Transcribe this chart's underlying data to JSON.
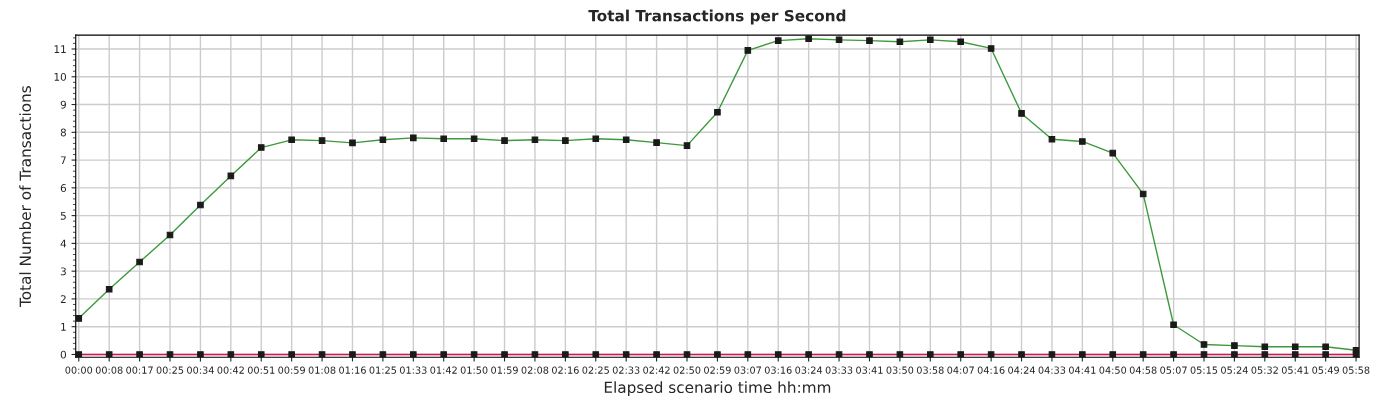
{
  "chart_data": {
    "type": "line",
    "title": "Total Transactions per Second",
    "xlabel": "Elapsed scenario time hh:mm",
    "ylabel": "Total Number of Transactions",
    "categories": [
      "00:00",
      "00:08",
      "00:17",
      "00:25",
      "00:34",
      "00:42",
      "00:51",
      "00:59",
      "01:08",
      "01:16",
      "01:25",
      "01:33",
      "01:42",
      "01:50",
      "01:59",
      "02:08",
      "02:16",
      "02:25",
      "02:33",
      "02:42",
      "02:50",
      "02:59",
      "03:07",
      "03:16",
      "03:24",
      "03:33",
      "03:41",
      "03:50",
      "03:58",
      "04:07",
      "04:16",
      "04:24",
      "04:33",
      "04:41",
      "04:50",
      "04:58",
      "05:07",
      "05:15",
      "05:24",
      "05:32",
      "05:41",
      "05:49",
      "05:58"
    ],
    "series": [
      {
        "color": "#3c9a3c",
        "values": [
          1.3,
          2.35,
          3.33,
          4.3,
          5.38,
          6.43,
          7.45,
          7.73,
          7.7,
          7.62,
          7.73,
          7.8,
          7.77,
          7.77,
          7.7,
          7.73,
          7.7,
          7.77,
          7.73,
          7.63,
          7.52,
          8.72,
          10.95,
          11.3,
          11.37,
          11.33,
          11.3,
          11.26,
          11.33,
          11.26,
          11.02,
          8.68,
          7.75,
          7.67,
          7.25,
          5.78,
          1.07,
          0.36,
          0.32,
          0.28,
          0.28,
          0.28,
          0.15
        ]
      },
      {
        "color": "#d4145a",
        "values": [
          0,
          0,
          0,
          0,
          0,
          0,
          0,
          0,
          0,
          0,
          0,
          0,
          0,
          0,
          0,
          0,
          0,
          0,
          0,
          0,
          0,
          0,
          0,
          0,
          0,
          0,
          0,
          0,
          0,
          0,
          0,
          0,
          0,
          0,
          0,
          0,
          0,
          0,
          0,
          0,
          0,
          0,
          0
        ]
      }
    ],
    "ylim": [
      -0.1,
      11.5
    ],
    "yticks": [
      0,
      1,
      2,
      3,
      4,
      5,
      6,
      7,
      8,
      9,
      10,
      11
    ],
    "grid": true,
    "marker": "square",
    "line_style": "solid",
    "legend": false
  }
}
